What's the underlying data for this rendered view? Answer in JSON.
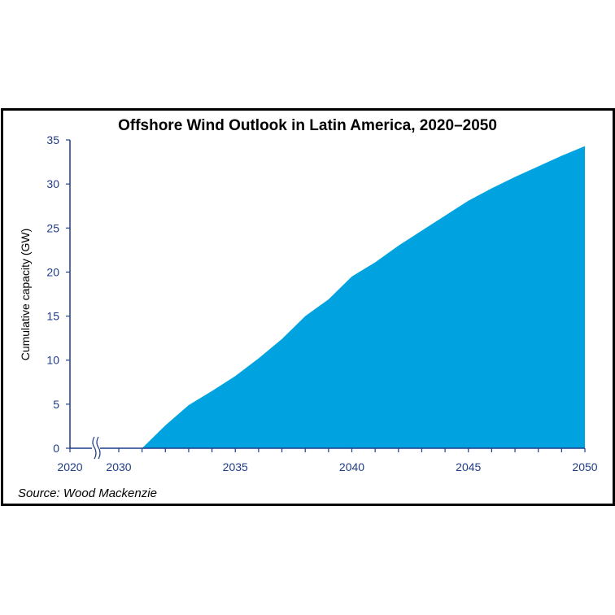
{
  "chart_data": {
    "type": "area",
    "title": "Offshore Wind Outlook in Latin America, 2020–2050",
    "xlabel": "",
    "ylabel": "Cumulative capacity (GW)",
    "source": "Source: Wood Mackenzie",
    "ylim": [
      0,
      35
    ],
    "yticks": [
      0,
      5,
      10,
      15,
      20,
      25,
      30,
      35
    ],
    "xlim": [
      2030,
      2050
    ],
    "xtick_labels": [
      "2020",
      "2030",
      "2035",
      "2040",
      "2045",
      "2050"
    ],
    "axis_break": "between 2020 and 2030",
    "grid": false,
    "color": "#00a3e0",
    "axis_color": "#1f3c88",
    "x": [
      2020,
      2030,
      2031,
      2032,
      2033,
      2034,
      2035,
      2036,
      2037,
      2038,
      2039,
      2040,
      2041,
      2042,
      2043,
      2044,
      2045,
      2046,
      2047,
      2048,
      2049,
      2050
    ],
    "values": [
      0,
      0,
      0,
      2.6,
      4.9,
      6.5,
      8.2,
      10.2,
      12.4,
      15.0,
      16.9,
      19.5,
      21.1,
      23.0,
      24.7,
      26.4,
      28.1,
      29.5,
      30.8,
      32.0,
      33.2,
      34.3
    ]
  }
}
